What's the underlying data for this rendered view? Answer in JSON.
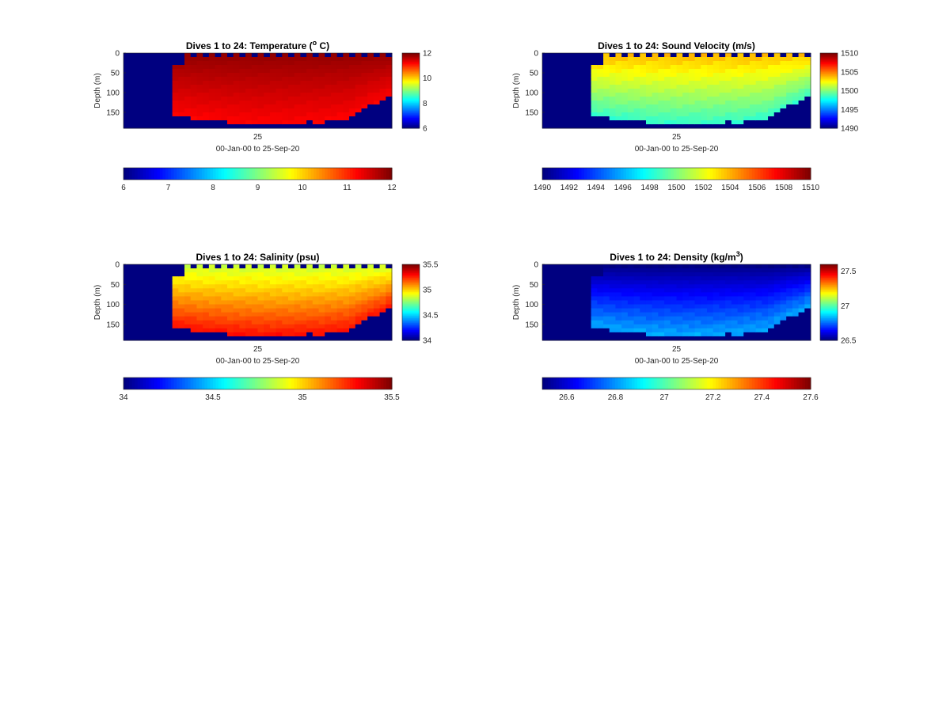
{
  "chart_data": [
    {
      "type": "heatmap",
      "title": "Dives 1 to 24: Temperature (",
      "title_sup": "o",
      "title_suffix": " C)",
      "ylabel": "Depth (m)",
      "x_tick_labels": [
        "25"
      ],
      "xlabel": "00-Jan-00 to 25-Sep-20",
      "y_ticks": [
        0,
        50,
        100,
        150
      ],
      "ylim": [
        0,
        190
      ],
      "colorbar_vertical_ticks": [
        "6",
        "8",
        "10",
        "12"
      ],
      "colorbar_horizontal_ticks": [
        "6",
        "7",
        "8",
        "9",
        "10",
        "11",
        "12"
      ],
      "clim": [
        6,
        12
      ],
      "colormap": "jet",
      "columns": 44,
      "surface_value_range": [
        11.8,
        12
      ],
      "deep_value_range": [
        11.0,
        11.5
      ],
      "background_value": 6
    },
    {
      "type": "heatmap",
      "title": "Dives 1 to 24: Sound Velocity (m/s)",
      "ylabel": "Depth (m)",
      "x_tick_labels": [
        "25"
      ],
      "xlabel": "00-Jan-00 to 25-Sep-20",
      "y_ticks": [
        0,
        50,
        100,
        150
      ],
      "ylim": [
        0,
        190
      ],
      "colorbar_vertical_ticks": [
        "1510",
        "1505",
        "1500",
        "1495",
        "1490"
      ],
      "colorbar_horizontal_ticks": [
        "1490",
        "1492",
        "1494",
        "1496",
        "1498",
        "1500",
        "1502",
        "1504",
        "1506",
        "1508",
        "1510"
      ],
      "clim": [
        1490,
        1510
      ],
      "colormap": "jet",
      "columns": 44,
      "surface_value_range": [
        1502,
        1506
      ],
      "deep_value_range": [
        1497,
        1500
      ],
      "background_value": 1490
    },
    {
      "type": "heatmap",
      "title": "Dives 1 to 24: Salinity (psu)",
      "ylabel": "Depth (m)",
      "x_tick_labels": [
        "25"
      ],
      "xlabel": "00-Jan-00 to 25-Sep-20",
      "y_ticks": [
        0,
        50,
        100,
        150
      ],
      "ylim": [
        0,
        190
      ],
      "colorbar_vertical_ticks": [
        "35.5",
        "35",
        "34.5",
        "34"
      ],
      "colorbar_horizontal_ticks": [
        "34",
        "34.5",
        "35",
        "35.5"
      ],
      "clim": [
        34,
        35.5
      ],
      "colormap": "jet",
      "columns": 44,
      "surface_value_range": [
        34.7,
        35.0
      ],
      "deep_value_range": [
        35.2,
        35.4
      ],
      "background_value": 34
    },
    {
      "type": "heatmap",
      "title": "Dives 1 to 24: Density (kg/m",
      "title_sup": "3",
      "title_suffix": ")",
      "ylabel": "Depth (m)",
      "x_tick_labels": [
        "25"
      ],
      "xlabel": "00-Jan-00 to 25-Sep-20",
      "y_ticks": [
        0,
        50,
        100,
        150
      ],
      "ylim": [
        0,
        190
      ],
      "colorbar_vertical_ticks": [
        "27.5",
        "27",
        "26.5"
      ],
      "colorbar_horizontal_ticks": [
        "26.6",
        "26.8",
        "27",
        "27.2",
        "27.4",
        "27.6"
      ],
      "clim": [
        26.5,
        27.6
      ],
      "colormap": "jet",
      "columns": 44,
      "surface_value_range": [
        26.5,
        26.5
      ],
      "deep_value_range": [
        26.7,
        26.95
      ],
      "background_value": 26.5
    }
  ]
}
